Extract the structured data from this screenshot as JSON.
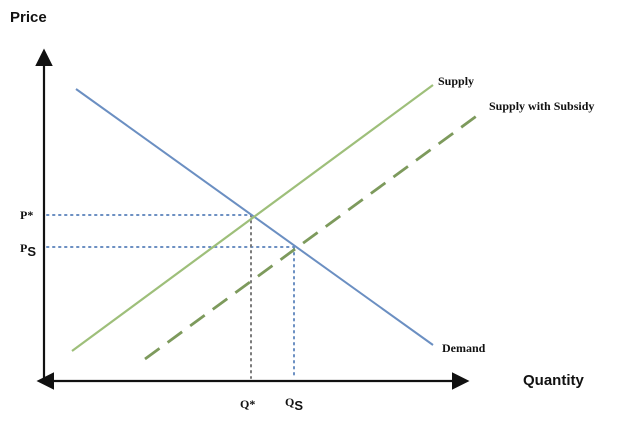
{
  "diagram": {
    "y_axis_title": "Price",
    "x_axis_title": "Quantity",
    "curves": {
      "supply": "Supply",
      "supply_subsidy": "Supply with Subsidy",
      "demand": "Demand"
    },
    "ticks": {
      "p_star": "P*",
      "p_s_main": "P",
      "p_s_sub": "S",
      "q_star": "Q*",
      "q_s_main": "Q",
      "q_s_sub": "S"
    },
    "colors": {
      "axis": "#111111",
      "demand": "#6b8fc2",
      "supply": "#9ebf7a",
      "supply_subsidy": "#7d9a5c",
      "guide_blue": "#6b8fc2",
      "guide_gray": "#7a7a7a"
    }
  }
}
